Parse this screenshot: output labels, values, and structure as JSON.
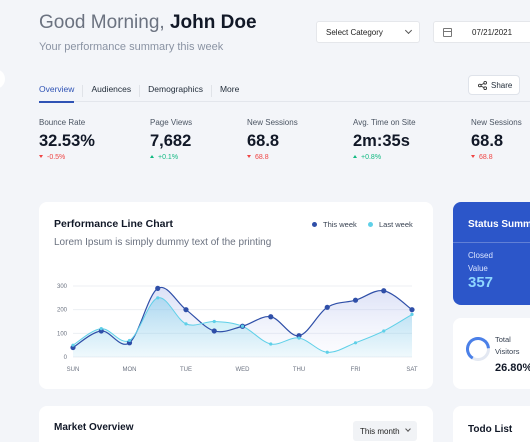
{
  "header": {
    "greeting_prefix": "Good Morning, ",
    "user_name": "John Doe",
    "subtitle": "Your performance summary this week",
    "category_select": "Select Category",
    "date_value": "07/21/2021"
  },
  "tabs": [
    {
      "label": "Overview",
      "active": true
    },
    {
      "label": "Audiences"
    },
    {
      "label": "Demographics"
    },
    {
      "label": "More"
    }
  ],
  "share_label": "Share",
  "kpis": [
    {
      "label": "Bounce Rate",
      "value": "32.53%",
      "change": "-0.5%",
      "direction": "down"
    },
    {
      "label": "Page Views",
      "value": "7,682",
      "change": "+0.1%",
      "direction": "up"
    },
    {
      "label": "New Sessions",
      "value": "68.8",
      "change": "68.8",
      "direction": "down"
    },
    {
      "label": "Avg. Time on Site",
      "value": "2m:35s",
      "change": "+0.8%",
      "direction": "up"
    },
    {
      "label": "New Sessions",
      "value": "68.8",
      "change": "68.8",
      "direction": "down"
    }
  ],
  "performance_chart": {
    "title": "Performance Line Chart",
    "subtitle": "Lorem Ipsum is simply dummy text of the printing",
    "legend": {
      "this_week": "This week",
      "last_week": "Last week"
    }
  },
  "chart_data": {
    "type": "area",
    "categories": [
      "SUN",
      "",
      "MON",
      "",
      "TUE",
      "",
      "WED",
      "",
      "THU",
      "",
      "FRI",
      "",
      "SAT"
    ],
    "x_tick_labels": [
      "SUN",
      "MON",
      "TUE",
      "WED",
      "THU",
      "FRI",
      "SAT"
    ],
    "y_ticks": [
      0,
      100,
      200,
      300
    ],
    "ylim": [
      0,
      300
    ],
    "series": [
      {
        "name": "This week",
        "color": "#2f4fa8",
        "values": [
          40,
          110,
          60,
          290,
          200,
          110,
          130,
          170,
          90,
          210,
          240,
          280,
          200
        ]
      },
      {
        "name": "Last week",
        "color": "#5fd0e8",
        "values": [
          50,
          120,
          70,
          250,
          140,
          150,
          130,
          55,
          80,
          20,
          60,
          110,
          180
        ]
      }
    ],
    "grid": true
  },
  "status_summary": {
    "title": "Status Summary",
    "label": "Closed Value",
    "value": "357"
  },
  "visitors": {
    "label": "Total Visitors",
    "value": "26.80%",
    "ring_percent": 26.8,
    "ring_color": "#4b80e8"
  },
  "market_overview": {
    "title": "Market Overview",
    "period": "This month"
  },
  "todo": {
    "title": "Todo List"
  }
}
